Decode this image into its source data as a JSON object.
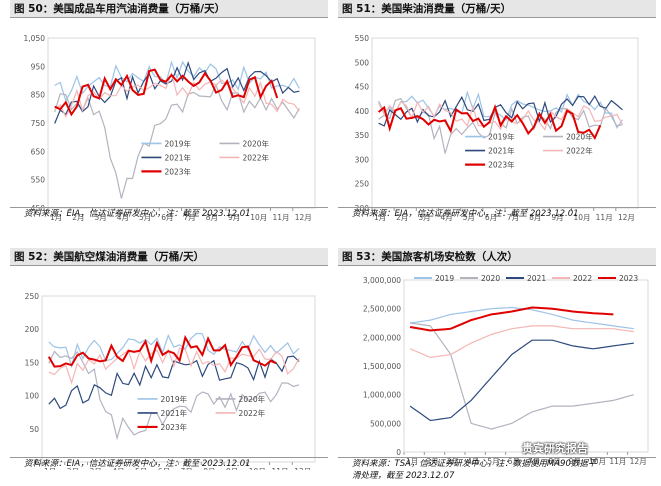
{
  "panels": [
    {
      "title": "图 50：美国成品车用汽油消费量（万桶/天）",
      "source": "资料来源：EIA，信达证券研发中心，注：截至 2023.12.01"
    },
    {
      "title": "图 51：美国柴油消费量（万桶/天）",
      "source": "资料来源：EIA，信达证券研发中心，注：截至 2023.12.01"
    },
    {
      "title": "图 52：美国航空煤油消费量（万桶/天）",
      "source": "资料来源：EIA，信达证券研发中心，注：截至 2023.12.01"
    },
    {
      "title": "图 53：美国旅客机场安检数（人次）",
      "source_line1": "资料来源：TSA，信达证券研发中心，注：数据使用MA90数据平",
      "source_line2": "滑处理，截至 2023.12.07"
    }
  ],
  "watermark": "贵宾研究报告",
  "chart_data": [
    {
      "type": "line",
      "categories": [
        "1月",
        "2月",
        "3月",
        "4月",
        "5月",
        "6月",
        "7月",
        "8月",
        "9月",
        "10月",
        "11月",
        "12月"
      ],
      "ylim": [
        450,
        1050
      ],
      "yticks": [
        "450",
        "550",
        "650",
        "750",
        "850",
        "950",
        "1,050"
      ],
      "legend": "in-plot",
      "series": [
        {
          "name": "2019年",
          "color": "#9dc3e6",
          "values": [
            850,
            880,
            900,
            920,
            930,
            930,
            940,
            940,
            910,
            900,
            890,
            880
          ]
        },
        {
          "name": "2020年",
          "color": "#b3b3c0",
          "values": [
            820,
            840,
            790,
            510,
            650,
            800,
            840,
            850,
            830,
            830,
            790,
            810
          ]
        },
        {
          "name": "2021年",
          "color": "#2e4a7d",
          "values": [
            760,
            820,
            850,
            870,
            890,
            920,
            930,
            930,
            900,
            910,
            880,
            870
          ]
        },
        {
          "name": "2022年",
          "color": "#f4b6b6",
          "values": [
            790,
            830,
            850,
            860,
            880,
            900,
            880,
            870,
            860,
            860,
            830,
            800
          ]
        },
        {
          "name": "2023年",
          "color": "#e00000",
          "values": [
            780,
            830,
            860,
            880,
            890,
            920,
            910,
            900,
            880,
            880,
            860,
            null
          ]
        }
      ]
    },
    {
      "type": "line",
      "categories": [
        "1月",
        "2月",
        "3月",
        "4月",
        "5月",
        "6月",
        "7月",
        "8月",
        "9月",
        "10月",
        "11月",
        "12月"
      ],
      "ylim": [
        200,
        550
      ],
      "yticks": [
        "200",
        "250",
        "300",
        "350",
        "400",
        "450",
        "500",
        "550"
      ],
      "legend": "in-plot",
      "series": [
        {
          "name": "2019年",
          "color": "#9dc3e6",
          "values": [
            400,
            420,
            410,
            410,
            420,
            410,
            400,
            410,
            410,
            420,
            400,
            380
          ]
        },
        {
          "name": "2020年",
          "color": "#b3b3c0",
          "values": [
            400,
            410,
            390,
            330,
            360,
            370,
            380,
            380,
            380,
            390,
            390,
            370
          ]
        },
        {
          "name": "2021年",
          "color": "#2e4a7d",
          "values": [
            380,
            400,
            400,
            400,
            410,
            400,
            400,
            400,
            400,
            410,
            420,
            400
          ]
        },
        {
          "name": "2022年",
          "color": "#f4b6b6",
          "values": [
            410,
            420,
            400,
            390,
            390,
            390,
            380,
            380,
            380,
            390,
            380,
            370
          ]
        },
        {
          "name": "2023年",
          "color": "#e00000",
          "values": [
            380,
            390,
            390,
            380,
            380,
            390,
            370,
            380,
            380,
            380,
            360,
            null
          ]
        }
      ]
    },
    {
      "type": "line",
      "categories": [
        "1月",
        "2月",
        "3月",
        "4月",
        "5月",
        "6月",
        "7月",
        "8月",
        "9月",
        "10月",
        "11月",
        "12月"
      ],
      "ylim": [
        0,
        250
      ],
      "yticks": [
        "0",
        "50",
        "100",
        "150",
        "200",
        "250"
      ],
      "legend": "in-plot",
      "series": [
        {
          "name": "2019年",
          "color": "#9dc3e6",
          "values": [
            165,
            160,
            170,
            170,
            175,
            180,
            185,
            180,
            170,
            175,
            170,
            165
          ]
        },
        {
          "name": "2020年",
          "color": "#b3b3c0",
          "values": [
            160,
            160,
            130,
            50,
            50,
            70,
            90,
            90,
            90,
            95,
            100,
            110
          ]
        },
        {
          "name": "2021年",
          "color": "#2e4a7d",
          "values": [
            90,
            100,
            110,
            120,
            130,
            140,
            145,
            145,
            135,
            140,
            140,
            145
          ]
        },
        {
          "name": "2022年",
          "color": "#f4b6b6",
          "values": [
            130,
            135,
            145,
            150,
            155,
            160,
            160,
            160,
            150,
            155,
            150,
            150
          ]
        },
        {
          "name": "2023年",
          "color": "#e00000",
          "values": [
            145,
            150,
            155,
            160,
            165,
            170,
            170,
            170,
            160,
            165,
            160,
            null
          ]
        }
      ]
    },
    {
      "type": "line",
      "categories": [
        "1月",
        "2月",
        "3月",
        "4月",
        "5月",
        "6月",
        "7月",
        "8月",
        "9月",
        "10月",
        "11月",
        "12月"
      ],
      "ylim": [
        0,
        3000000
      ],
      "yticks": [
        "0",
        "500,000",
        "1,000,000",
        "1,500,000",
        "2,000,000",
        "2,500,000",
        "3,000,000"
      ],
      "legend": "top",
      "series": [
        {
          "name": "2019",
          "color": "#9dc3e6",
          "values": [
            2250000,
            2300000,
            2400000,
            2450000,
            2500000,
            2520000,
            2480000,
            2400000,
            2300000,
            2250000,
            2200000,
            2150000
          ]
        },
        {
          "name": "2020",
          "color": "#b3b3c0",
          "values": [
            2250000,
            2200000,
            1700000,
            500000,
            400000,
            500000,
            700000,
            800000,
            800000,
            850000,
            900000,
            1000000
          ]
        },
        {
          "name": "2021",
          "color": "#2e4a7d",
          "values": [
            800000,
            550000,
            600000,
            900000,
            1300000,
            1700000,
            1950000,
            1950000,
            1850000,
            1800000,
            1850000,
            1900000
          ]
        },
        {
          "name": "2022",
          "color": "#f4b6b6",
          "values": [
            1800000,
            1650000,
            1700000,
            1900000,
            2050000,
            2150000,
            2200000,
            2200000,
            2150000,
            2150000,
            2150000,
            2100000
          ]
        },
        {
          "name": "2023",
          "color": "#e00000",
          "values": [
            2180000,
            2120000,
            2150000,
            2300000,
            2400000,
            2450000,
            2520000,
            2500000,
            2450000,
            2420000,
            2400000,
            null
          ]
        }
      ]
    }
  ]
}
